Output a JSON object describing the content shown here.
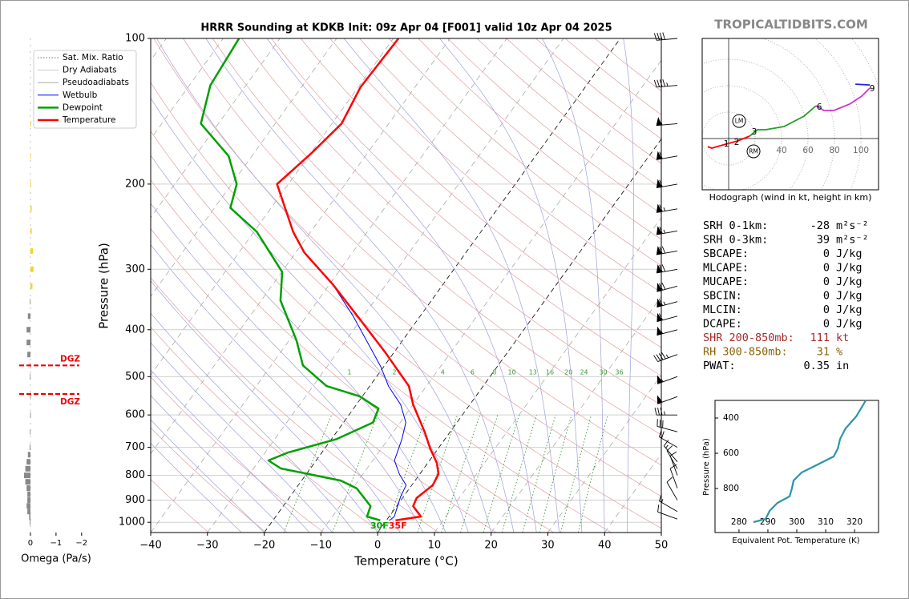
{
  "brand": "TROPICALTIDBITS.COM",
  "parameters": [
    {
      "name": "SRH 0-1km:",
      "value": -28,
      "unit": "m²s⁻²"
    },
    {
      "name": "SRH 0-3km:",
      "value": 39,
      "unit": "m²s⁻²"
    },
    {
      "name": "SBCAPE:",
      "value": 0,
      "unit": "J/kg"
    },
    {
      "name": "MLCAPE:",
      "value": 0,
      "unit": "J/kg"
    },
    {
      "name": "MUCAPE:",
      "value": 0,
      "unit": "J/kg"
    },
    {
      "name": "SBCIN:",
      "value": 0,
      "unit": "J/kg"
    },
    {
      "name": "MLCIN:",
      "value": 0,
      "unit": "J/kg"
    },
    {
      "name": "DCAPE:",
      "value": 0,
      "unit": "J/kg"
    },
    {
      "name": "SHR 200-850mb:",
      "value": 111,
      "unit": "kt",
      "color": "#a52a2a"
    },
    {
      "name": "RH 300-850mb:",
      "value": 31,
      "unit": "%",
      "color": "#8b6508"
    },
    {
      "name": "PWAT:",
      "value": 0.35,
      "unit": "in"
    }
  ],
  "chart_data": [
    {
      "type": "skewt",
      "title": "HRRR Sounding at KDKB Init: 09z Apr 04 [F001] valid 10z Apr 04 2025",
      "xlabel": "Temperature (°C)",
      "ylabel": "Pressure (hPa)",
      "xlim": [
        -40,
        50
      ],
      "xticks": [
        {
          "value": -40,
          "label": "−40"
        },
        {
          "value": -30,
          "label": "−30"
        },
        {
          "value": -20,
          "label": "−20"
        },
        {
          "value": -10,
          "label": "−10"
        },
        0,
        10,
        20,
        30,
        40,
        50
      ],
      "ylim": [
        1050,
        100
      ],
      "log_scale": true,
      "yticks": [
        100,
        200,
        300,
        400,
        500,
        600,
        700,
        800,
        900,
        1000
      ],
      "grid": true,
      "background_lines": [
        {
          "name": "Sat. Mix. Ratio",
          "color": "#3a9a3a"
        },
        {
          "name": "Dry Adiabats",
          "color": "#e0a0a0"
        },
        {
          "name": "Pseudoadiabats",
          "color": "#a0a0d8"
        }
      ],
      "mixing_ratio_labels": [
        1,
        2,
        4,
        6,
        8,
        10,
        13,
        16,
        20,
        24,
        30,
        36
      ],
      "series": [
        {
          "name": "Wetbulb",
          "color": "#0000ee",
          "pressure": [
            991,
            973,
            886,
            838,
            795,
            745,
            673,
            622,
            571,
            523,
            477,
            375,
            322,
            277,
            251,
            200,
            172,
            150,
            126,
            100
          ],
          "values": [
            0.6,
            0.9,
            -0.5,
            -1.0,
            -3.6,
            -6.2,
            -7.6,
            -9.0,
            -12.2,
            -16.7,
            -20.5,
            -31.8,
            -39.5,
            -48.5,
            -53.1,
            -62.0,
            -59.8,
            -58.3,
            -59.6,
            -59.1
          ]
        },
        {
          "name": "Dewpoint",
          "color": "#00a000",
          "pressure": [
            991,
            973,
            926,
            851,
            820,
            774,
            745,
            717,
            673,
            622,
            582,
            549,
            523,
            474,
            421,
            348,
            304,
            251,
            224,
            200,
            175,
            150,
            125,
            100
          ],
          "values": [
            -1.1,
            -3.9,
            -4.6,
            -9.3,
            -13.1,
            -25.2,
            -28.4,
            -25.9,
            -19.1,
            -14.8,
            -15.6,
            -20.5,
            -27.6,
            -34.4,
            -38.7,
            -46.6,
            -49.9,
            -59.5,
            -67.2,
            -69.1,
            -74.1,
            -83.1,
            -86.3,
            -87.2
          ]
        },
        {
          "name": "Temperature",
          "color": "#ff0000",
          "pressure": [
            991,
            973,
            926,
            891,
            838,
            795,
            754,
            704,
            652,
            571,
            523,
            481,
            445,
            382,
            322,
            277,
            251,
            200,
            172,
            150,
            126,
            100
          ],
          "values": [
            1.6,
            5.6,
            2.9,
            2.5,
            3.7,
            3.3,
            1.6,
            -1.4,
            -4.4,
            -10.0,
            -13.1,
            -17.5,
            -21.6,
            -30.0,
            -39.5,
            -48.5,
            -53.1,
            -62.0,
            -59.8,
            -58.3,
            -59.6,
            -59.1
          ]
        }
      ],
      "surface_labels": [
        {
          "label": "30F",
          "color": "#00a000"
        },
        {
          "label": "35F",
          "color": "#ff0000"
        }
      ],
      "wind": {
        "pressure": [
          100,
          125,
          150,
          175,
          200,
          225,
          250,
          275,
          300,
          325,
          350,
          375,
          400,
          450,
          500,
          550,
          600,
          650,
          700,
          750,
          775,
          800,
          850,
          900,
          950,
          985
        ],
        "speed": [
          40,
          45,
          55,
          60,
          60,
          65,
          65,
          70,
          70,
          70,
          65,
          60,
          55,
          45,
          55,
          50,
          35,
          30,
          20,
          15,
          10,
          10,
          10,
          10,
          15,
          10
        ],
        "direction": [
          265,
          265,
          265,
          260,
          260,
          260,
          260,
          260,
          260,
          255,
          255,
          255,
          255,
          250,
          250,
          250,
          270,
          285,
          300,
          320,
          330,
          340,
          340,
          330,
          300,
          290
        ]
      }
    },
    {
      "type": "bar",
      "xlabel": "Omega (Pa/s)",
      "xlim": [
        0.5,
        -2.1
      ],
      "xticks": [
        0,
        {
          "value": -1,
          "label": "−1"
        },
        {
          "value": -2,
          "label": "−2"
        }
      ],
      "colors": {
        "positive": "#888888",
        "negative": "#f5d327"
      },
      "pressure": [
        150,
        175,
        200,
        225,
        250,
        275,
        300,
        325,
        350,
        375,
        400,
        425,
        450,
        475,
        500,
        550,
        600,
        650,
        700,
        725,
        750,
        775,
        800,
        825,
        850,
        875,
        900,
        925,
        950,
        975,
        1000
      ],
      "values": [
        -0.03,
        -0.02,
        -0.03,
        -0.05,
        -0.05,
        -0.1,
        -0.12,
        -0.08,
        0.02,
        0.1,
        0.15,
        0.15,
        0.12,
        0.02,
        0.02,
        0.01,
        0.01,
        0.02,
        0.03,
        0.1,
        0.15,
        0.2,
        0.25,
        0.2,
        0.15,
        0.12,
        0.12,
        0.15,
        0.12,
        0.05,
        0.03
      ],
      "dgz": {
        "label": "DGZ",
        "pressure": [
          474,
          543
        ],
        "color": "#ee0000"
      }
    },
    {
      "type": "hodograph",
      "caption": "Hodograph (wind in kt, height in km)",
      "xlim": [
        -20,
        113.3
      ],
      "ylim": [
        -38.8,
        75.8
      ],
      "ring_ticks": [
        40,
        60,
        80,
        100
      ],
      "segments": [
        {
          "color": "#ff0000",
          "u": [
            -15.8,
            -12.7,
            -1.8,
            6.7,
            15.8
          ],
          "v": [
            -6.1,
            -7.3,
            -4.2,
            -1.8,
            1.8
          ]
        },
        {
          "color": "#22a022",
          "u": [
            15.8,
            21.8,
            27.9,
            41.8,
            57,
            66
          ],
          "v": [
            1.8,
            6.7,
            6.7,
            9.1,
            17,
            24.8
          ]
        },
        {
          "color": "#cc33cc",
          "u": [
            66,
            72.1,
            79.4,
            91.5,
            100.6,
            106.7
          ],
          "v": [
            24.8,
            21.2,
            21.2,
            26.1,
            32.1,
            38.2
          ]
        },
        {
          "color": "#2222dd",
          "u": [
            106.7,
            95.8
          ],
          "v": [
            40.6,
            41.2
          ]
        }
      ],
      "height_labels": [
        {
          "label": "1",
          "u": -1.8,
          "v": -4.2
        },
        {
          "label": "2",
          "u": 6.1,
          "v": -3.0
        },
        {
          "label": "3",
          "u": 19.4,
          "v": 4.8
        },
        {
          "label": "6",
          "u": 68.5,
          "v": 23.6
        },
        {
          "label": "9",
          "u": 108.5,
          "v": 37.6
        }
      ],
      "storm_motion": [
        {
          "label": "LM",
          "u": 7.9,
          "v": 13.3
        },
        {
          "label": "RM",
          "u": 18.8,
          "v": -9.7
        }
      ]
    },
    {
      "type": "line",
      "xlabel": "Equivalent Pot. Temperature (K)",
      "ylabel": "Pressure (hPa)",
      "color": "#2e94a8",
      "xlim": [
        271.7,
        328.3
      ],
      "xticks": [
        280,
        290,
        300,
        310,
        320
      ],
      "ylim": [
        1050,
        300
      ],
      "yticks": [
        400,
        600,
        800
      ],
      "pressure": [
        991,
        973,
        927,
        882,
        845,
        800,
        755,
        709,
        664,
        618,
        573,
        518,
        459,
        391,
        300
      ],
      "values": [
        285.0,
        289.2,
        290.6,
        293.3,
        297.5,
        298.3,
        298.9,
        301.7,
        307.2,
        312.8,
        314.2,
        315.0,
        316.9,
        320.6,
        323.9
      ]
    }
  ]
}
